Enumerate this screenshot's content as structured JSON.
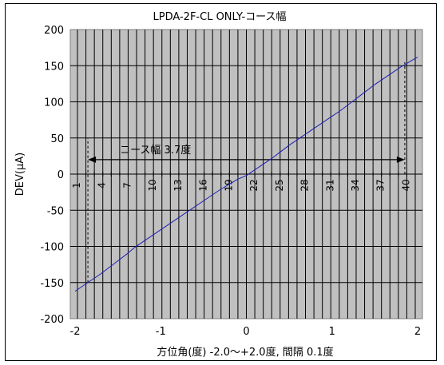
{
  "chart_data": {
    "type": "line",
    "title": "LPDA-2F-CL ONLY-コース幅",
    "xlabel": "方位角(度)  -2.0～+2.0度,  間隔 0.1度",
    "ylabel": "DEV(μA)",
    "xlim": [
      -2,
      2
    ],
    "ylim": [
      -200,
      200
    ],
    "x_ticks": [
      "-2",
      "-1",
      "0",
      "1",
      "2"
    ],
    "y_ticks": [
      "200",
      "150",
      "100",
      "50",
      "0",
      "-50",
      "-100",
      "-150",
      "-200"
    ],
    "y_tick_values": [
      200,
      150,
      100,
      50,
      0,
      -50,
      -100,
      -150,
      -200
    ],
    "index_ticks": [
      "1",
      "4",
      "7",
      "10",
      "13",
      "16",
      "19",
      "22",
      "25",
      "28",
      "31",
      "34",
      "37",
      "40"
    ],
    "series": [
      {
        "color": "#1f1fb4",
        "x": [
          -2.0,
          -1.9,
          -1.8,
          -1.7,
          -1.6,
          -1.5,
          -1.4,
          -1.3,
          -1.2,
          -1.1,
          -1.0,
          -0.9,
          -0.8,
          -0.7,
          -0.6,
          -0.5,
          -0.4,
          -0.3,
          -0.2,
          -0.1,
          0.0,
          0.1,
          0.2,
          0.3,
          0.4,
          0.5,
          0.6,
          0.7,
          0.8,
          0.9,
          1.0,
          1.1,
          1.2,
          1.3,
          1.4,
          1.5,
          1.6,
          1.7,
          1.8,
          1.9,
          2.0
        ],
        "values": [
          -162,
          -154,
          -146,
          -138,
          -129,
          -120,
          -111,
          -101,
          -93,
          -85,
          -77,
          -69,
          -61,
          -53,
          -45,
          -37,
          -29,
          -21,
          -14,
          -7,
          -2,
          6,
          14,
          22,
          31,
          40,
          48,
          56,
          64,
          72,
          80,
          88,
          97,
          106,
          115,
          124,
          132,
          140,
          148,
          155,
          162
        ]
      }
    ],
    "annotation": {
      "text": "コース幅  3.7度",
      "from_x": -1.85,
      "to_x": 1.85,
      "y": 20
    },
    "grid": true,
    "legend": "none",
    "plot_background": "#c0c0c0"
  }
}
